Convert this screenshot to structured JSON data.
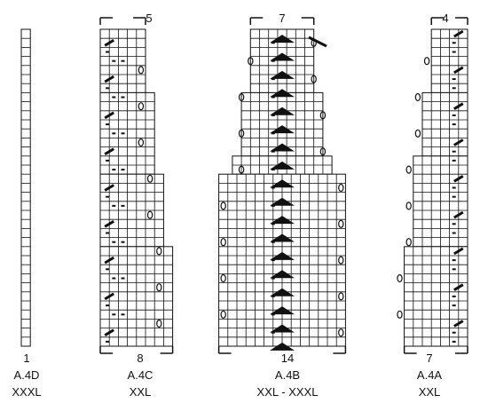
{
  "charts": [
    {
      "id": "A.4D",
      "top_count": "",
      "bottom_count": "1",
      "name": "A.4D",
      "size": "XXXL",
      "widths": [
        1
      ],
      "rows": 35,
      "symbols": []
    },
    {
      "id": "A.4C",
      "top_count": "5",
      "bottom_count": "8",
      "name": "A.4C",
      "size": "XXL",
      "widths": [
        5,
        6,
        7,
        8
      ],
      "rows": 35,
      "symbols": [
        "slash",
        "dash",
        "yo",
        "dash-row",
        "yo-edge"
      ]
    },
    {
      "id": "A.4B",
      "top_count": "7",
      "bottom_count": "14",
      "name": "A.4B",
      "size": "XXL - XXXL",
      "widths": [
        7,
        9,
        11,
        13,
        14
      ],
      "rows": 35,
      "symbols": [
        "triangle",
        "slash",
        "dash",
        "yo"
      ]
    },
    {
      "id": "A.4A",
      "top_count": "4",
      "bottom_count": "7",
      "name": "A.4A",
      "size": "XXL",
      "widths": [
        4,
        5,
        6,
        7
      ],
      "rows": 35,
      "symbols": [
        "slash",
        "dash",
        "yo"
      ]
    }
  ]
}
